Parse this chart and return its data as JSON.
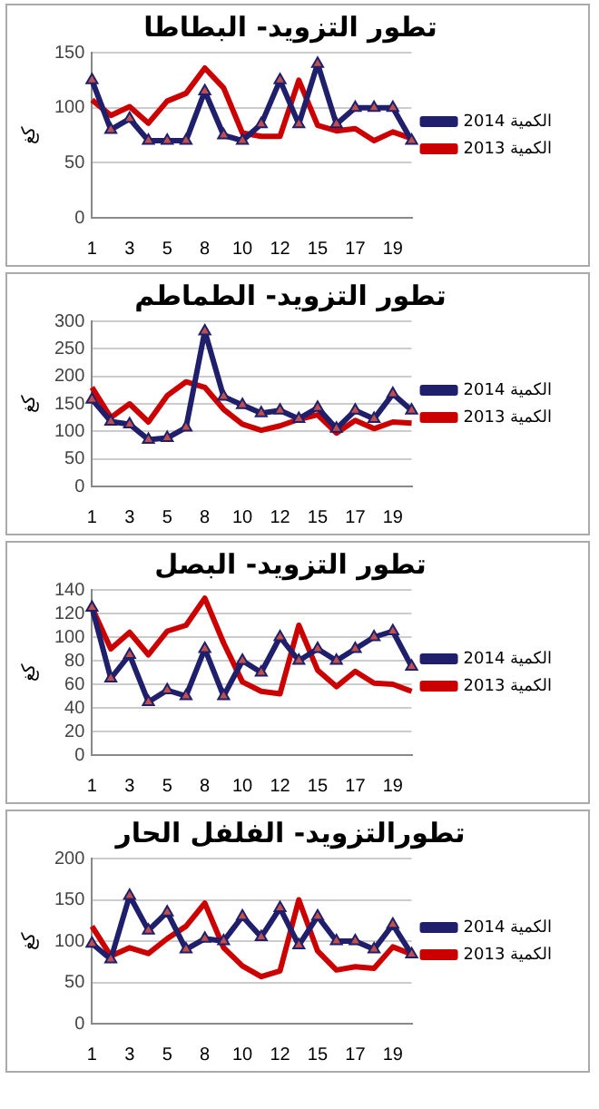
{
  "chart_data": [
    {
      "type": "line",
      "title": "تطور التزويد- البطاطا",
      "ylabel": "كغ",
      "categories": [
        "1",
        null,
        "3",
        null,
        "5",
        null,
        "8",
        null,
        "10",
        null,
        "12",
        null,
        "15",
        null,
        "17",
        null,
        "19",
        null
      ],
      "ylim": [
        0,
        150
      ],
      "yticks": [
        0,
        50,
        100,
        150
      ],
      "grid": "y",
      "legend": "right",
      "series": [
        {
          "name": "الكمية 2013",
          "color": "#cc0000",
          "marker": "none",
          "values": [
            107,
            93,
            101,
            86,
            106,
            113,
            136,
            118,
            77,
            74,
            74,
            125,
            84,
            79,
            81,
            70,
            78,
            72
          ]
        },
        {
          "name": "الكمية 2014",
          "color": "#1f1f6b",
          "marker": "triangle",
          "values": [
            125,
            80,
            90,
            70,
            70,
            70,
            115,
            75,
            70,
            85,
            125,
            85,
            140,
            85,
            100,
            100,
            100,
            70
          ]
        }
      ]
    },
    {
      "type": "line",
      "title": "تطور التزويد- الطماطم",
      "ylabel": "كغ",
      "categories": [
        "1",
        null,
        "3",
        null,
        "5",
        null,
        "8",
        null,
        "10",
        null,
        "12",
        null,
        "15",
        null,
        "17",
        null,
        "19",
        null
      ],
      "ylim": [
        0,
        300
      ],
      "yticks": [
        0,
        50,
        100,
        150,
        200,
        250,
        300
      ],
      "grid": "y",
      "legend": "right",
      "series": [
        {
          "name": "الكمية 2013",
          "color": "#cc0000",
          "marker": "none",
          "values": [
            180,
            125,
            150,
            117,
            165,
            190,
            180,
            140,
            113,
            102,
            110,
            122,
            130,
            97,
            120,
            105,
            117,
            115
          ]
        },
        {
          "name": "الكمية 2014",
          "color": "#1f1f6b",
          "marker": "triangle",
          "values": [
            158,
            118,
            113,
            85,
            88,
            107,
            282,
            163,
            148,
            133,
            138,
            123,
            143,
            105,
            138,
            123,
            168,
            138
          ]
        }
      ]
    },
    {
      "type": "line",
      "title": "تطور التزويد- البصل",
      "ylabel": "كغ",
      "categories": [
        "1",
        null,
        "3",
        null,
        "5",
        null,
        "8",
        null,
        "10",
        null,
        "12",
        null,
        "15",
        null,
        "17",
        null,
        "19",
        null
      ],
      "ylim": [
        0,
        140
      ],
      "yticks": [
        0,
        20,
        40,
        60,
        80,
        100,
        120,
        140
      ],
      "grid": "y",
      "legend": "right",
      "series": [
        {
          "name": "الكمية 2013",
          "color": "#cc0000",
          "marker": "none",
          "values": [
            125,
            90,
            104,
            85,
            105,
            110,
            133,
            95,
            62,
            54,
            52,
            110,
            72,
            58,
            71,
            61,
            60,
            54
          ]
        },
        {
          "name": "الكمية 2014",
          "color": "#1f1f6b",
          "marker": "triangle",
          "values": [
            125,
            65,
            85,
            45,
            55,
            50,
            90,
            50,
            80,
            70,
            100,
            80,
            90,
            80,
            90,
            100,
            105,
            75
          ]
        }
      ]
    },
    {
      "type": "line",
      "title": "تطورالتزويد- الفلفل الحار",
      "ylabel": "كغ",
      "categories": [
        "1",
        null,
        "3",
        null,
        "5",
        null,
        "8",
        null,
        "10",
        null,
        "12",
        null,
        "15",
        null,
        "17",
        null,
        "19",
        null
      ],
      "ylim": [
        0,
        200
      ],
      "yticks": [
        0,
        50,
        100,
        150,
        200
      ],
      "grid": "y",
      "legend": "right",
      "series": [
        {
          "name": "الكمية 2013",
          "color": "#cc0000",
          "marker": "none",
          "values": [
            118,
            82,
            92,
            85,
            103,
            118,
            146,
            92,
            70,
            57,
            64,
            150,
            88,
            65,
            69,
            67,
            93,
            84
          ]
        },
        {
          "name": "الكمية 2014",
          "color": "#1f1f6b",
          "marker": "triangle",
          "values": [
            97,
            78,
            155,
            113,
            135,
            90,
            103,
            100,
            130,
            105,
            140,
            95,
            130,
            100,
            100,
            90,
            120,
            84
          ]
        }
      ]
    }
  ]
}
